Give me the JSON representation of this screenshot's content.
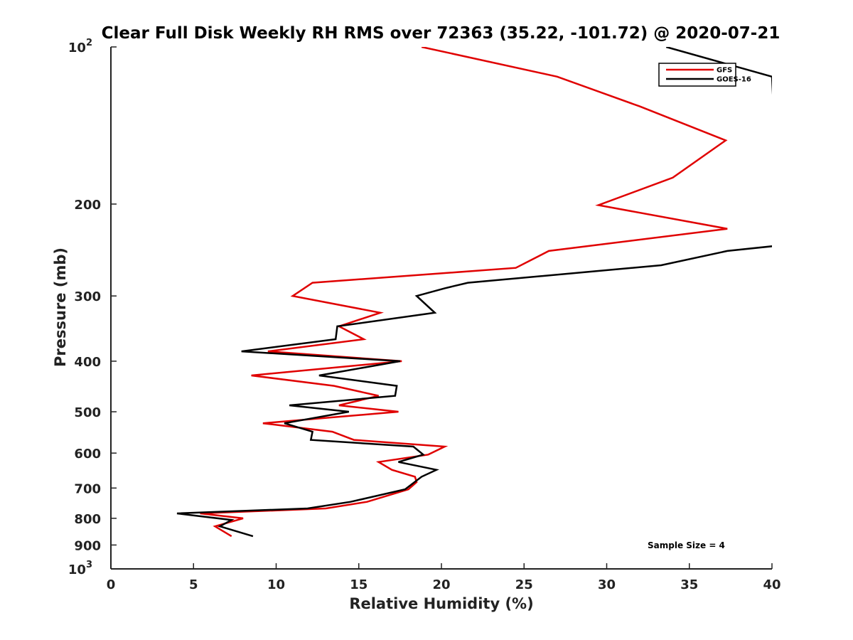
{
  "chart_data": {
    "type": "line",
    "title": "Clear Full Disk Weekly RH RMS over 72363 (35.22, -101.72) @ 2020-07-21",
    "xlabel": "Relative Humidity (%)",
    "ylabel": "Pressure (mb)",
    "xlim": [
      0,
      40
    ],
    "ylim": [
      100,
      1000
    ],
    "y_scale": "log",
    "y_reversed": true,
    "x_ticks": [
      0,
      5,
      10,
      15,
      20,
      25,
      30,
      35,
      40
    ],
    "x_tick_labels": [
      "0",
      "5",
      "10",
      "15",
      "20",
      "25",
      "30",
      "35",
      "40"
    ],
    "y_ticks": [
      100,
      200,
      300,
      400,
      500,
      600,
      700,
      800,
      900,
      1000
    ],
    "y_tick_labels": [
      {
        "base": "10",
        "exp": "2"
      },
      {
        "base": "200",
        "exp": ""
      },
      {
        "base": "300",
        "exp": ""
      },
      {
        "base": "400",
        "exp": ""
      },
      {
        "base": "500",
        "exp": ""
      },
      {
        "base": "600",
        "exp": ""
      },
      {
        "base": "700",
        "exp": ""
      },
      {
        "base": "800",
        "exp": ""
      },
      {
        "base": "900",
        "exp": ""
      },
      {
        "base": "10",
        "exp": "3"
      }
    ],
    "legend_position": "top-right",
    "grid": false,
    "annotation": "Sample Size = 4",
    "series": [
      {
        "name": "GFS",
        "color": "#e00000",
        "points": [
          [
            18.8,
            100
          ],
          [
            27.0,
            114
          ],
          [
            32.0,
            130
          ],
          [
            37.2,
            151
          ],
          [
            34.0,
            178
          ],
          [
            29.5,
            201
          ],
          [
            37.3,
            223
          ],
          [
            26.5,
            246
          ],
          [
            24.5,
            265
          ],
          [
            12.2,
            283
          ],
          [
            11.0,
            300
          ],
          [
            16.3,
            323
          ],
          [
            13.8,
            343
          ],
          [
            15.3,
            363
          ],
          [
            9.5,
            383
          ],
          [
            17.6,
            400
          ],
          [
            8.5,
            426
          ],
          [
            13.5,
            446
          ],
          [
            16.2,
            466
          ],
          [
            13.8,
            486
          ],
          [
            17.4,
            500
          ],
          [
            9.2,
            526
          ],
          [
            13.4,
            546
          ],
          [
            14.7,
            566
          ],
          [
            20.2,
            583
          ],
          [
            19.2,
            604
          ],
          [
            16.2,
            624
          ],
          [
            17.0,
            646
          ],
          [
            18.4,
            666
          ],
          [
            18.5,
            682
          ],
          [
            18.0,
            704
          ],
          [
            15.5,
            744
          ],
          [
            13.0,
            766
          ],
          [
            5.4,
            783
          ],
          [
            8.0,
            800
          ],
          [
            6.3,
            829
          ],
          [
            7.3,
            866
          ]
        ]
      },
      {
        "name": "GOES-16",
        "color": "#000000",
        "points": [
          [
            33.6,
            100
          ],
          [
            40.0,
            114
          ],
          [
            40.5,
            240
          ],
          [
            37.3,
            246
          ],
          [
            33.3,
            262
          ],
          [
            21.6,
            283
          ],
          [
            20.2,
            290
          ],
          [
            18.5,
            300
          ],
          [
            19.6,
            323
          ],
          [
            13.7,
            343
          ],
          [
            13.6,
            363
          ],
          [
            7.9,
            383
          ],
          [
            17.5,
            400
          ],
          [
            12.6,
            426
          ],
          [
            17.3,
            446
          ],
          [
            17.2,
            466
          ],
          [
            10.8,
            486
          ],
          [
            14.4,
            500
          ],
          [
            10.5,
            526
          ],
          [
            12.2,
            546
          ],
          [
            12.1,
            566
          ],
          [
            18.3,
            583
          ],
          [
            18.9,
            604
          ],
          [
            17.4,
            624
          ],
          [
            19.7,
            646
          ],
          [
            18.8,
            666
          ],
          [
            17.8,
            704
          ],
          [
            14.5,
            744
          ],
          [
            11.9,
            766
          ],
          [
            4.0,
            783
          ],
          [
            7.3,
            806
          ],
          [
            6.6,
            829
          ],
          [
            8.6,
            866
          ]
        ]
      }
    ]
  }
}
